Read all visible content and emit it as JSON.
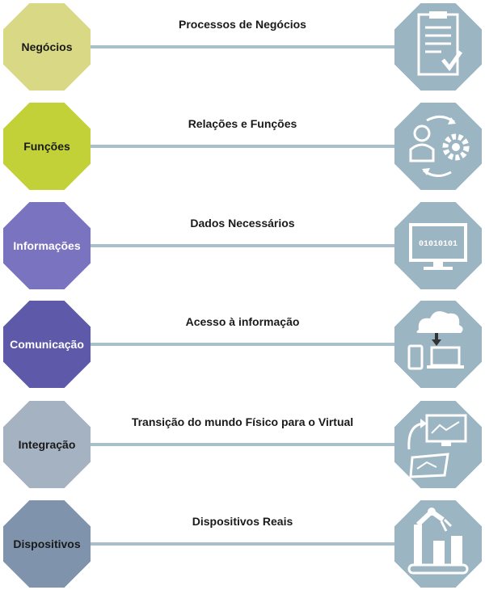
{
  "rows": [
    {
      "label": "Negócios",
      "title": "Processos de Negócios",
      "color": "#d9d985",
      "text_color": "#1a1a1a",
      "icon": "clipboard-check-icon"
    },
    {
      "label": "Funções",
      "title": "Relações e Funções",
      "color": "#c3d138",
      "text_color": "#1a1a1a",
      "icon": "person-gear-cycle-icon"
    },
    {
      "label": "Informações",
      "title": "Dados Necessários",
      "color": "#7a73bf",
      "text_color": "#ffffff",
      "icon": "monitor-binary-icon"
    },
    {
      "label": "Comunicação",
      "title": "Acesso à informação",
      "color": "#5f59aa",
      "text_color": "#ffffff",
      "icon": "cloud-devices-icon"
    },
    {
      "label": "Integração",
      "title": "Transição do mundo Físico para o Virtual",
      "color": "#a5b2c2",
      "text_color": "#1a1a1a",
      "icon": "physical-virtual-icon"
    },
    {
      "label": "Dispositivos",
      "title": "Dispositivos Reais",
      "color": "#7f93ac",
      "text_color": "#1a1a1a",
      "icon": "robot-arm-icon"
    }
  ],
  "monitor_text": "01010101",
  "icon_color": "#9cb5c2"
}
